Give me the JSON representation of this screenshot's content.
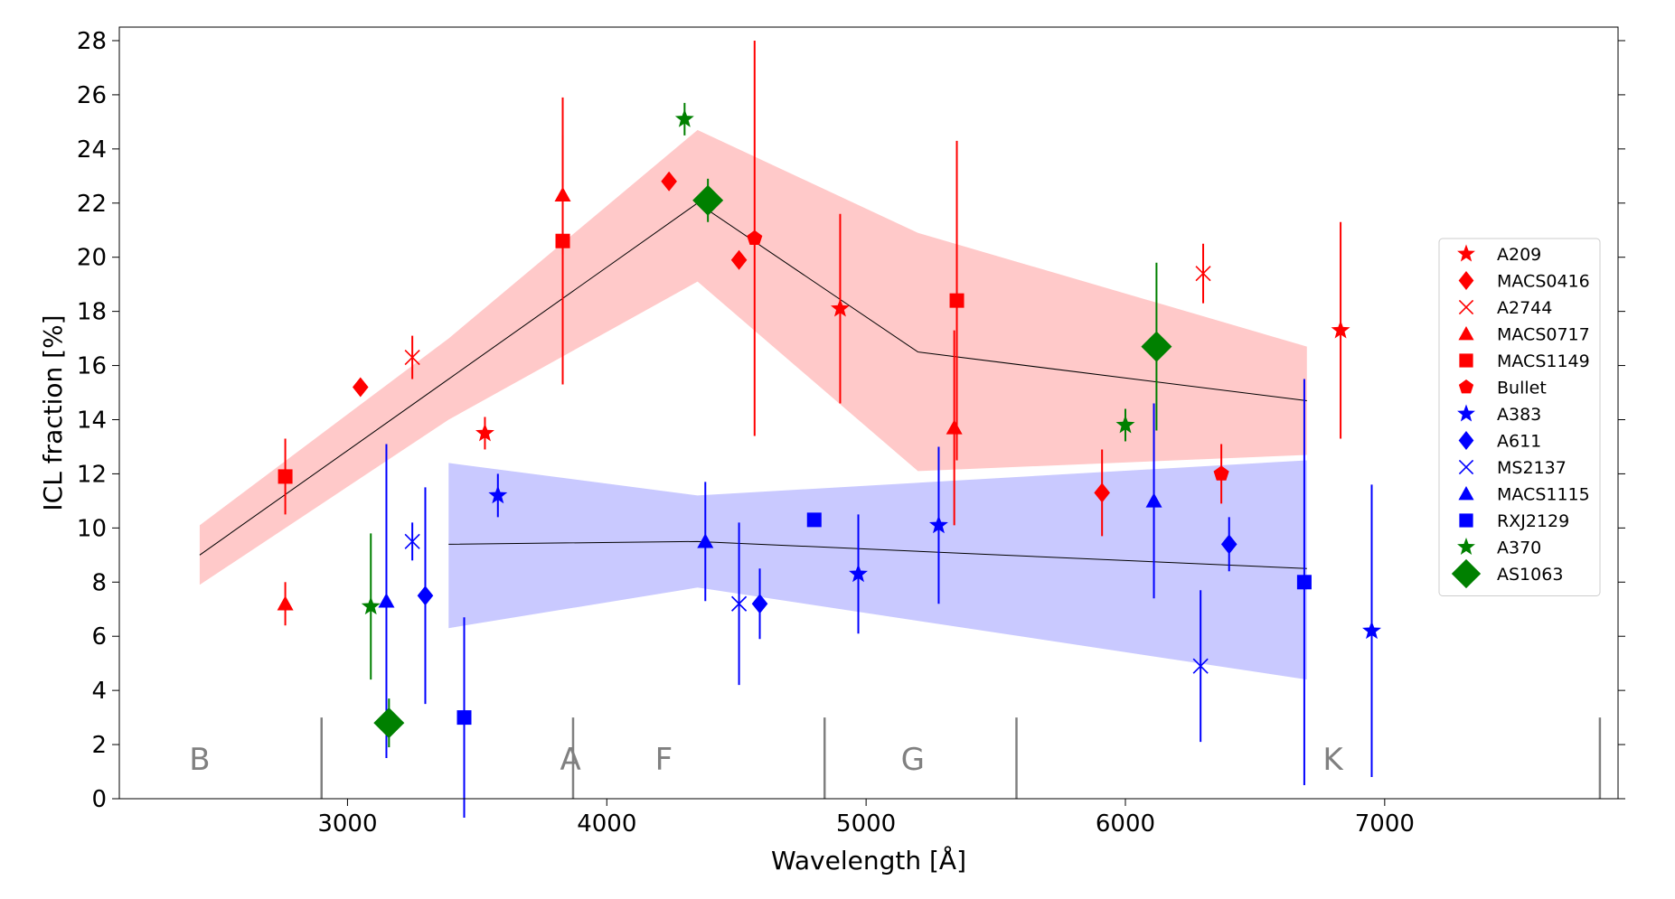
{
  "chart_data": {
    "type": "scatter",
    "xlabel": "Wavelength [Å]",
    "ylabel": "ICL fraction [%]",
    "xlim": [
      2120,
      7900
    ],
    "ylim": [
      0,
      28.5
    ],
    "xticks": [
      3000,
      4000,
      5000,
      6000,
      7000
    ],
    "yticks": [
      0,
      2,
      4,
      6,
      8,
      10,
      12,
      14,
      16,
      18,
      20,
      22,
      24,
      26,
      28
    ],
    "grid": false,
    "legend_position": "right",
    "colors": {
      "red": "#ff0000",
      "blue": "#0000ff",
      "green": "#008000",
      "red_band": "#ffc9c9",
      "blue_band": "#c9c9ff",
      "band_gray_line": "#000000",
      "spectral_label": "#808080"
    },
    "bands": [
      {
        "name": "red",
        "x": [
          2430,
          3390,
          4350,
          5200,
          6700
        ],
        "y": [
          9.0,
          15.5,
          22.0,
          16.5,
          14.7
        ],
        "lower": [
          7.9,
          14.0,
          19.1,
          12.1,
          12.7
        ],
        "upper": [
          10.1,
          17.0,
          24.7,
          20.9,
          16.7
        ]
      },
      {
        "name": "blue",
        "x": [
          3390,
          4350,
          6700
        ],
        "y": [
          9.4,
          9.5,
          8.5
        ],
        "lower": [
          6.3,
          7.8,
          4.4
        ],
        "upper": [
          12.4,
          11.2,
          12.5
        ]
      }
    ],
    "spectral_types": {
      "labels": [
        "B",
        "A",
        "F",
        "G",
        "K"
      ],
      "label_x": [
        2430,
        3860,
        4220,
        5180,
        6800
      ],
      "label_y": 1.4,
      "dividers_x": [
        2900,
        3870,
        4840,
        5580,
        7830
      ],
      "divider_height": 3.0
    },
    "series": [
      {
        "name": "A209",
        "marker": "star",
        "color": "#ff0000",
        "points": [
          {
            "x": 3530,
            "y": 13.5,
            "err": 0.6
          },
          {
            "x": 4900,
            "y": 18.1,
            "err": 3.5
          },
          {
            "x": 6830,
            "y": 17.3,
            "err": 4.0
          }
        ]
      },
      {
        "name": "MACS0416",
        "marker": "diamond",
        "color": "#ff0000",
        "points": [
          {
            "x": 3050,
            "y": 15.2,
            "err": 0
          },
          {
            "x": 4240,
            "y": 22.8,
            "err": 0
          },
          {
            "x": 4510,
            "y": 19.9,
            "err": 0.3
          },
          {
            "x": 5910,
            "y": 11.3,
            "err": 1.6
          }
        ]
      },
      {
        "name": "A2744",
        "marker": "x",
        "color": "#ff0000",
        "points": [
          {
            "x": 3250,
            "y": 16.3,
            "err": 0.8
          },
          {
            "x": 6300,
            "y": 19.4,
            "err": 1.1
          }
        ]
      },
      {
        "name": "MACS0717",
        "marker": "triangle",
        "color": "#ff0000",
        "points": [
          {
            "x": 2760,
            "y": 7.2,
            "err": 0.8
          },
          {
            "x": 3830,
            "y": 22.3,
            "err": 2.2
          },
          {
            "x": 5340,
            "y": 13.7,
            "err": 3.6
          }
        ]
      },
      {
        "name": "MACS1149",
        "marker": "square",
        "color": "#ff0000",
        "points": [
          {
            "x": 2760,
            "y": 11.9,
            "err": 1.4
          },
          {
            "x": 3830,
            "y": 20.6,
            "err": 5.3
          },
          {
            "x": 5350,
            "y": 18.4,
            "err": 5.9
          }
        ]
      },
      {
        "name": "Bullet",
        "marker": "pentagon",
        "color": "#ff0000",
        "points": [
          {
            "x": 4570,
            "y": 20.7,
            "err": 7.3
          },
          {
            "x": 6370,
            "y": 12.0,
            "err": 1.1
          }
        ]
      },
      {
        "name": "A383",
        "marker": "star",
        "color": "#0000ff",
        "points": [
          {
            "x": 3580,
            "y": 11.2,
            "err": 0.8
          },
          {
            "x": 4970,
            "y": 8.3,
            "err": 2.2
          },
          {
            "x": 5280,
            "y": 10.1,
            "err": 2.9
          },
          {
            "x": 6950,
            "y": 6.2,
            "err": 5.4
          }
        ]
      },
      {
        "name": "A611",
        "marker": "diamond",
        "color": "#0000ff",
        "points": [
          {
            "x": 3300,
            "y": 7.5,
            "err": 4.0
          },
          {
            "x": 4590,
            "y": 7.2,
            "err": 1.3
          },
          {
            "x": 6400,
            "y": 9.4,
            "err": 1.0
          }
        ]
      },
      {
        "name": "MS2137",
        "marker": "x",
        "color": "#0000ff",
        "points": [
          {
            "x": 3250,
            "y": 9.5,
            "err": 0.7
          },
          {
            "x": 4510,
            "y": 7.2,
            "err": 3.0
          },
          {
            "x": 6290,
            "y": 4.9,
            "err": 2.8
          }
        ]
      },
      {
        "name": "MACS1115",
        "marker": "triangle",
        "color": "#0000ff",
        "points": [
          {
            "x": 3150,
            "y": 7.3,
            "err": 5.8
          },
          {
            "x": 4380,
            "y": 9.5,
            "err": 2.2
          },
          {
            "x": 6110,
            "y": 11.0,
            "err": 3.6
          }
        ]
      },
      {
        "name": "RXJ2129",
        "marker": "square",
        "color": "#0000ff",
        "points": [
          {
            "x": 3450,
            "y": 3.0,
            "err": 3.7
          },
          {
            "x": 4800,
            "y": 10.3,
            "err": 0.2
          },
          {
            "x": 6690,
            "y": 8.0,
            "err": 7.5
          }
        ]
      },
      {
        "name": "A370",
        "marker": "star",
        "color": "#008000",
        "points": [
          {
            "x": 3090,
            "y": 7.1,
            "err": 2.7
          },
          {
            "x": 4300,
            "y": 25.1,
            "err": 0.6
          },
          {
            "x": 6000,
            "y": 13.8,
            "err": 0.6
          }
        ]
      },
      {
        "name": "AS1063",
        "marker": "bigdiamond",
        "color": "#008000",
        "points": [
          {
            "x": 3160,
            "y": 2.8,
            "err": 0.9
          },
          {
            "x": 4390,
            "y": 22.1,
            "err": 0.8
          },
          {
            "x": 6120,
            "y": 16.7,
            "err": 3.1
          }
        ]
      }
    ]
  }
}
